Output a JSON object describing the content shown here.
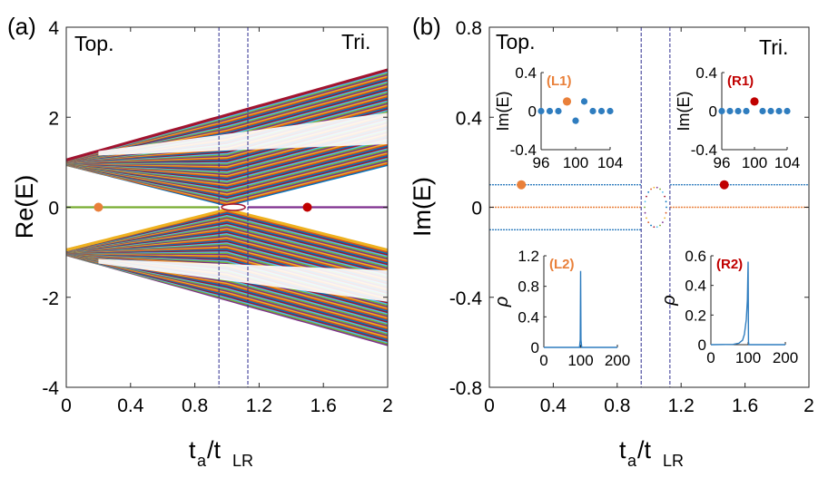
{
  "panels": {
    "a": {
      "panel_label": "(a)",
      "left_annotation": "Top.",
      "right_annotation": "Tri.",
      "ylabel": "Re(E)",
      "xlabel_main": "t",
      "xlabel_sub1": "a",
      "xlabel_slash": "/t",
      "xlabel_sub2": "LR",
      "xticks": [
        "0",
        "0.4",
        "0.8",
        "1.2",
        "1.6",
        "2"
      ],
      "yticks": [
        "-4",
        "-2",
        "0",
        "2",
        "4"
      ]
    },
    "b": {
      "panel_label": "(b)",
      "left_annotation": "Top.",
      "right_annotation": "Tri.",
      "ylabel": "Im(E)",
      "xlabel_main": "t",
      "xlabel_sub1": "a",
      "xlabel_slash": "/t",
      "xlabel_sub2": "LR",
      "xticks": [
        "0",
        "0.4",
        "0.8",
        "1.2",
        "1.6",
        "2"
      ],
      "yticks": [
        "-0.8",
        "-0.4",
        "0",
        "0.4",
        "0.8"
      ],
      "insets": {
        "L1": {
          "label": "(L1)",
          "ylabel": "Im(E)",
          "xticks": [
            "96",
            "100",
            "104"
          ],
          "yticks": [
            "0.4",
            "0",
            "-0.4"
          ]
        },
        "R1": {
          "label": "(R1)",
          "ylabel": "Im(E)",
          "xticks": [
            "96",
            "100",
            "104"
          ],
          "yticks": [
            "0.4",
            "0",
            "-0.4"
          ]
        },
        "L2": {
          "label": "(L2)",
          "ylabel": "ρ",
          "xticks": [
            "0",
            "100",
            "200"
          ],
          "yticks": [
            "1.2",
            "0.8",
            "0.4",
            "0"
          ]
        },
        "R2": {
          "label": "(R2)",
          "ylabel": "ρ",
          "xticks": [
            "0",
            "100",
            "200"
          ],
          "yticks": [
            "0.6",
            "0.4",
            "0.2",
            "0"
          ]
        }
      }
    }
  },
  "colors": {
    "orange": "#e9803a",
    "red": "#c00000",
    "blue": "#2f7dbf",
    "purple": "#7e2f8e",
    "green": "#77ac30",
    "dashed": "#2e2e8f",
    "label_orange": "#e9803a",
    "label_red": "#c00000"
  },
  "chart_data": [
    {
      "type": "line",
      "panel": "a",
      "xlabel": "t_a/t_LR",
      "ylabel": "Re(E)",
      "xlim": [
        0,
        2
      ],
      "ylim": [
        -4,
        4
      ],
      "grid": false,
      "bands": {
        "upper_band": {
          "x": [
            0,
            1,
            2
          ],
          "min": [
            0.95,
            0.05,
            0.95
          ],
          "max": [
            1.05,
            2.05,
            3.05
          ]
        },
        "lower_band": {
          "x": [
            0,
            1,
            2
          ],
          "min": [
            -1.05,
            -2.05,
            -3.05
          ],
          "max": [
            -0.95,
            -0.05,
            -0.95
          ]
        },
        "gaps": [
          [
            0.2,
            2.0,
            1.4,
            2.1
          ],
          [
            0.2,
            2.0,
            -1.4,
            -2.1
          ]
        ]
      },
      "zero_mode": [
        {
          "name": "",
          "x": [
            0,
            0.95
          ],
          "y": [
            0,
            0
          ]
        },
        {
          "name": "",
          "x": [
            1.13,
            2
          ],
          "y": [
            0,
            0
          ]
        }
      ],
      "markers": [
        {
          "x": 0.2,
          "y": 0,
          "color": "orange"
        },
        {
          "x": 1.5,
          "y": 0,
          "color": "red"
        }
      ],
      "vlines": [
        0.95,
        1.13
      ]
    },
    {
      "type": "scatter",
      "panel": "b",
      "xlabel": "t_a/t_LR",
      "ylabel": "Im(E)",
      "xlim": [
        0,
        2
      ],
      "ylim": [
        -0.8,
        0.8
      ],
      "lines": [
        {
          "x": [
            0,
            0.95
          ],
          "y": [
            0.1,
            0.1
          ]
        },
        {
          "x": [
            0,
            0.95
          ],
          "y": [
            -0.1,
            -0.1
          ]
        },
        {
          "x": [
            0,
            0.95
          ],
          "y": [
            0,
            0
          ]
        },
        {
          "x": [
            1.13,
            2
          ],
          "y": [
            0.1,
            0.1
          ]
        },
        {
          "x": [
            1.13,
            2
          ],
          "y": [
            0,
            0
          ]
        }
      ],
      "markers": [
        {
          "x": 0.2,
          "y": 0.1,
          "color": "orange"
        },
        {
          "x": 1.47,
          "y": 0.1,
          "color": "red"
        }
      ],
      "vlines": [
        0.95,
        1.13
      ]
    },
    {
      "type": "scatter",
      "panel": "b-inset-L1",
      "xlim": [
        96,
        104
      ],
      "ylim": [
        -0.4,
        0.4
      ],
      "x": [
        96,
        97,
        98,
        99,
        100,
        101,
        102,
        103,
        104
      ],
      "y": [
        0,
        0,
        0,
        0.1,
        -0.1,
        0.1,
        0,
        0,
        0
      ],
      "highlight": {
        "x": 99,
        "y": 0.1,
        "color": "orange"
      }
    },
    {
      "type": "scatter",
      "panel": "b-inset-R1",
      "xlim": [
        96,
        104
      ],
      "ylim": [
        -0.4,
        0.4
      ],
      "x": [
        96,
        97,
        98,
        99,
        100,
        101,
        102,
        103,
        104
      ],
      "y": [
        0,
        0,
        0,
        0,
        0.1,
        0,
        0,
        0,
        0
      ],
      "highlight": {
        "x": 100,
        "y": 0.1,
        "color": "red"
      }
    },
    {
      "type": "line",
      "panel": "b-inset-L2",
      "xlim": [
        0,
        200
      ],
      "ylim": [
        0,
        1.2
      ],
      "x": [
        0,
        97,
        99,
        100,
        101,
        103,
        200
      ],
      "y": [
        0,
        0,
        0.1,
        1.0,
        0.1,
        0,
        0
      ]
    },
    {
      "type": "line",
      "panel": "b-inset-R2",
      "xlim": [
        0,
        200
      ],
      "ylim": [
        0,
        0.6
      ],
      "x": [
        0,
        60,
        75,
        85,
        90,
        95,
        98,
        100,
        101,
        102,
        200
      ],
      "y": [
        0,
        0.002,
        0.01,
        0.03,
        0.07,
        0.17,
        0.3,
        0.56,
        0.02,
        0,
        0
      ]
    }
  ]
}
